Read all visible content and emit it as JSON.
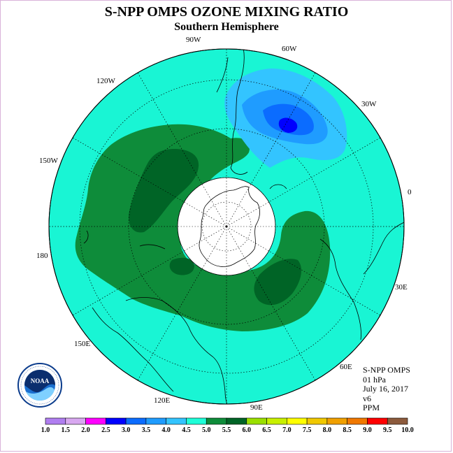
{
  "title": "S-NPP OMPS OZONE MIXING RATIO",
  "subtitle": "Southern Hemisphere",
  "longitude_labels": [
    "90W",
    "60W",
    "30W",
    "0",
    "30E",
    "60E",
    "90E",
    "120E",
    "150E",
    "180",
    "150W",
    "120W"
  ],
  "info": {
    "instrument": "S-NPP OMPS",
    "level": "01 hPa",
    "date": "July 16, 2017",
    "version": "v6",
    "units": "PPM"
  },
  "logo_text": "NOAA",
  "logo_ring_text": "NATIONAL OCEANIC AND ATMOSPHERIC ADMINISTRATION · U.S. DEPARTMENT OF COMMERCE",
  "colorbar": {
    "ticks": [
      "1.0",
      "1.5",
      "2.0",
      "2.5",
      "3.0",
      "3.5",
      "4.0",
      "4.5",
      "5.0",
      "5.5",
      "6.0",
      "6.5",
      "7.0",
      "7.5",
      "8.0",
      "8.5",
      "9.0",
      "9.5",
      "10.0"
    ],
    "colors": [
      "#b07ef0",
      "#d8a8f0",
      "#ff00ff",
      "#0000ff",
      "#0b6cff",
      "#1f9cff",
      "#33c4ff",
      "#1effd8",
      "#0e8c3a",
      "#006426",
      "#9adf00",
      "#c8f000",
      "#ffff00",
      "#f0c800",
      "#f0a000",
      "#f07800",
      "#ff0000",
      "#8c5a3c"
    ]
  },
  "colors": {
    "background_field": "#19f5d4",
    "level_5_0": "#0e8c3a",
    "level_5_5": "#006426",
    "level_4_0": "#33c4ff",
    "level_3_5": "#1f9cff",
    "level_3_0": "#0b6cff",
    "level_2_5": "#0000ff"
  }
}
